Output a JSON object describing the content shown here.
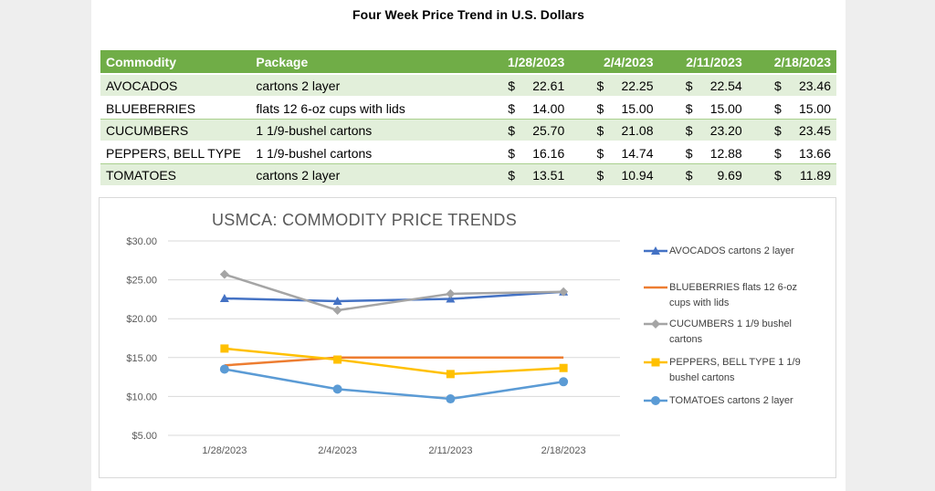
{
  "title": "Four Week Price Trend in U.S. Dollars",
  "table": {
    "headers": [
      "Commodity",
      "Package",
      "1/28/2023",
      "2/4/2023",
      "2/11/2023",
      "2/18/2023"
    ],
    "currency": "$",
    "rows": [
      {
        "commodity": "AVOCADOS",
        "package": "cartons 2 layer",
        "prices": [
          "22.61",
          "22.25",
          "22.54",
          "23.46"
        ]
      },
      {
        "commodity": "BLUEBERRIES",
        "package": "flats 12 6-oz cups with lids",
        "prices": [
          "14.00",
          "15.00",
          "15.00",
          "15.00"
        ]
      },
      {
        "commodity": "CUCUMBERS",
        "package": "1 1/9-bushel cartons",
        "prices": [
          "25.70",
          "21.08",
          "23.20",
          "23.45"
        ]
      },
      {
        "commodity": "PEPPERS, BELL TYPE",
        "package": "1 1/9-bushel cartons",
        "prices": [
          "16.16",
          "14.74",
          "12.88",
          "13.66"
        ]
      },
      {
        "commodity": "TOMATOES",
        "package": "cartons 2 layer",
        "prices": [
          "13.51",
          "10.94",
          "9.69",
          "11.89"
        ]
      }
    ]
  },
  "chart_data": {
    "type": "line",
    "title": "USMCA: COMMODITY PRICE TRENDS",
    "categories": [
      "1/28/2023",
      "2/4/2023",
      "2/11/2023",
      "2/18/2023"
    ],
    "yticks": [
      "$30.00",
      "$25.00",
      "$20.00",
      "$15.00",
      "$10.00",
      "$5.00"
    ],
    "ylim": [
      5,
      30
    ],
    "grid": true,
    "legend_position": "right",
    "series": [
      {
        "name": "AVOCADOS cartons 2 layer",
        "legend_lines": [
          "AVOCADOS cartons 2 layer"
        ],
        "values": [
          22.61,
          22.25,
          22.54,
          23.46
        ],
        "color": "#4472c4",
        "marker": "triangle"
      },
      {
        "name": "BLUEBERRIES flats 12 6-oz cups with lids",
        "legend_lines": [
          "BLUEBERRIES flats 12 6-oz",
          "cups with lids"
        ],
        "values": [
          14.0,
          15.0,
          15.0,
          15.0
        ],
        "color": "#ed7d31",
        "marker": "none"
      },
      {
        "name": "CUCUMBERS 1 1/9 bushel cartons",
        "legend_lines": [
          "CUCUMBERS 1 1/9 bushel",
          "cartons"
        ],
        "values": [
          25.7,
          21.08,
          23.2,
          23.45
        ],
        "color": "#a5a5a5",
        "marker": "diamond"
      },
      {
        "name": "PEPPERS, BELL TYPE 1 1/9 bushel cartons",
        "legend_lines": [
          "PEPPERS, BELL TYPE 1 1/9",
          "bushel cartons"
        ],
        "values": [
          16.16,
          14.74,
          12.88,
          13.66
        ],
        "color": "#ffc000",
        "marker": "square"
      },
      {
        "name": "TOMATOES cartons 2 layer",
        "legend_lines": [
          "TOMATOES cartons 2 layer"
        ],
        "values": [
          13.51,
          10.94,
          9.69,
          11.89
        ],
        "color": "#5b9bd5",
        "marker": "circle"
      }
    ]
  }
}
